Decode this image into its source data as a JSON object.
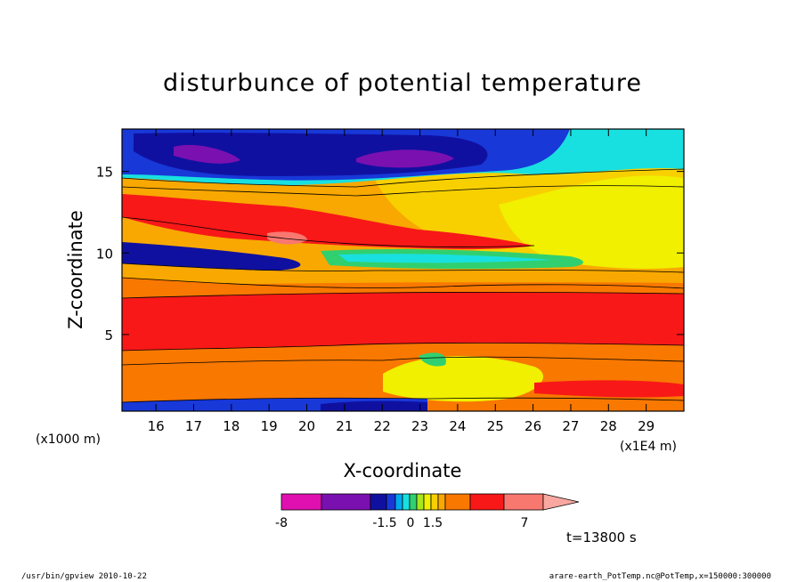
{
  "chart_data": {
    "type": "heatmap",
    "title": "disturbunce of potential temperature",
    "xlabel": "X-coordinate",
    "ylabel": "Z-coordinate",
    "x_unit_left": "(x1000 m)",
    "x_unit_right": "(x1E4 m)",
    "xlim": [
      15.1,
      30
    ],
    "ylim": [
      0.3,
      17.6
    ],
    "x_ticks": [
      16,
      17,
      18,
      19,
      20,
      21,
      22,
      23,
      24,
      25,
      26,
      27,
      28,
      29
    ],
    "y_ticks": [
      5,
      10,
      15
    ],
    "time_label": "t=13800 s",
    "colorbar": {
      "labels": [
        "-8",
        "-1.5",
        "0",
        "1.5",
        "7"
      ],
      "colors": [
        "#e010b0",
        "#7a10b0",
        "#1010a0",
        "#1838d8",
        "#00a8f0",
        "#18e0e0",
        "#30d070",
        "#a8e818",
        "#f0f000",
        "#f8d000",
        "#f8a800",
        "#f87800",
        "#f81818",
        "#f87870"
      ]
    },
    "bands": [
      {
        "level": "purple",
        "color": "#7a10b0",
        "z_approx": 16.5
      },
      {
        "level": "blue",
        "color": "#1010a0",
        "z_approx": 16.0
      },
      {
        "level": "red",
        "color": "#f81818",
        "z_approx": 12.5
      },
      {
        "level": "navy",
        "color": "#1010a0",
        "z_approx": 10.0
      },
      {
        "level": "red",
        "color": "#f81818",
        "z_approx": 6.0
      },
      {
        "level": "orange",
        "color": "#f87800",
        "z_approx": 2.5
      }
    ]
  },
  "footer": {
    "left": "/usr/bin/gpview   2010-10-22",
    "right": "arare-earth_PotTemp.nc@PotTemp,x=150000:300000"
  }
}
